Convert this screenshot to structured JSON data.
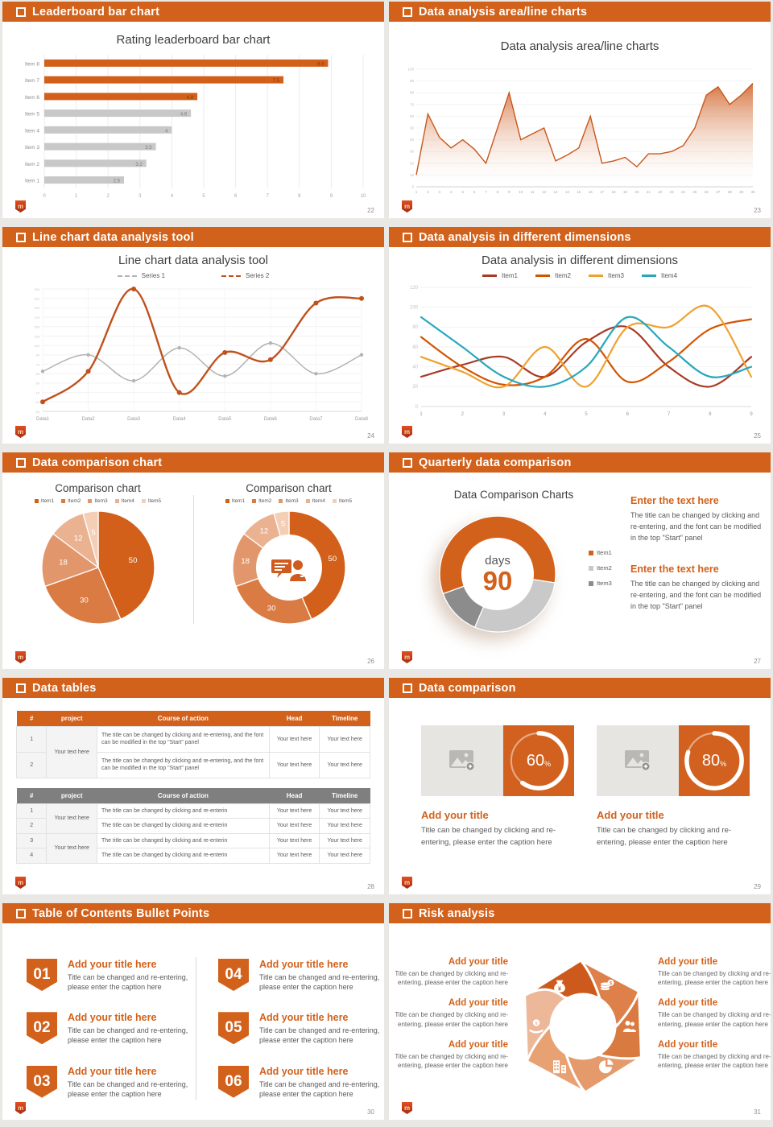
{
  "colors": {
    "accent": "#d2611b",
    "page_bg": "#eae8e4",
    "slide_bg": "#ffffff",
    "bar_orange": "#d2601a",
    "bar_gray": "#c8c8c8",
    "donut_gray_light": "#c9c9c9",
    "donut_gray_dark": "#8c8c8c"
  },
  "logo": {
    "label": "m"
  },
  "slides": [
    {
      "header": "Leaderboard bar chart",
      "page": "22",
      "title": "Rating leaderboard bar chart"
    },
    {
      "header": "Data analysis area/line charts",
      "page": "23",
      "title": "Data analysis area/line charts"
    },
    {
      "header": "Line chart data analysis tool",
      "page": "24",
      "title": "Line chart data analysis tool"
    },
    {
      "header": "Data analysis in different dimensions",
      "page": "25",
      "title": "Data analysis in different dimensions"
    },
    {
      "header": "Data comparison chart",
      "page": "26",
      "left_title": "Comparison chart",
      "right_title": "Comparison chart"
    },
    {
      "header": "Quarterly data comparison",
      "page": "27",
      "chart_title": "Data Comparison Charts",
      "center_label": "days",
      "center_value": "90",
      "blocks": [
        {
          "heading": "Enter the text here",
          "body": "The title can be changed by clicking and re-entering, and the font can be modified in the top \"Start\" panel"
        },
        {
          "heading": "Enter the text here",
          "body": "The title can be changed by clicking and re-entering, and the font can be modified in the top \"Start\" panel"
        }
      ]
    },
    {
      "header": "Data tables",
      "page": "28",
      "columns": [
        "#",
        "project",
        "Course of action",
        "Head",
        "Timeline"
      ],
      "table1": {
        "projects": [
          "Your text here"
        ],
        "rows": [
          {
            "num": "1",
            "course": "The title can be changed by clicking and re-entering, and the font can be modified in the top \"Start\" panel",
            "head": "Your text here",
            "timeline": "Your text here"
          },
          {
            "num": "2",
            "course": "The title can be changed by clicking and re-entering, and the font can be modified in the top \"Start\" panel",
            "head": "Your text here",
            "timeline": "Your text here"
          }
        ]
      },
      "table2": {
        "projects": [
          "Your text here",
          "Your text here"
        ],
        "rows": [
          {
            "num": "1",
            "course": "The title can be changed by clicking and re-enterin",
            "head": "Your text here",
            "timeline": "Your text here"
          },
          {
            "num": "2",
            "course": "The title can be changed by clicking and re-enterin",
            "head": "Your text here",
            "timeline": "Your text here"
          },
          {
            "num": "3",
            "course": "The title can be changed by clicking and re-enterin",
            "head": "Your text here",
            "timeline": "Your text here"
          },
          {
            "num": "4",
            "course": "The title can be changed by clicking and re-enterin",
            "head": "Your text here",
            "timeline": "Your text here"
          }
        ]
      }
    },
    {
      "header": "Data comparison",
      "page": "29",
      "cards": [
        {
          "value": "60",
          "unit": "%",
          "heading": "Add your title",
          "body": "Title can be changed by clicking and re-entering, please enter the caption here"
        },
        {
          "value": "80",
          "unit": "%",
          "heading": "Add your title",
          "body": "Title can be changed by clicking and re-entering, please enter the caption here"
        }
      ]
    },
    {
      "header": "Table of Contents Bullet Points",
      "page": "30",
      "items": [
        {
          "num": "01",
          "heading": "Add your title here",
          "body": "Title can be changed and re-entering, please enter the caption here"
        },
        {
          "num": "02",
          "heading": "Add your title here",
          "body": "Title can be changed and re-entering, please enter the caption here"
        },
        {
          "num": "03",
          "heading": "Add your title here",
          "body": "Title can be changed and re-entering, please enter the caption here"
        },
        {
          "num": "04",
          "heading": "Add your title here",
          "body": "Title can be changed and re-entering, please enter the caption here"
        },
        {
          "num": "05",
          "heading": "Add your title here",
          "body": "Title can be changed and re-entering, please enter the caption here"
        },
        {
          "num": "06",
          "heading": "Add your title here",
          "body": "Title can be changed and re-entering, please enter the caption here"
        }
      ]
    },
    {
      "header": "Risk analysis",
      "page": "31",
      "icons": [
        "money-bag",
        "coins",
        "people",
        "pie-chart",
        "building",
        "hand-coin"
      ],
      "blocks": [
        {
          "heading": "Add your title",
          "body": "Title can be changed by clicking and re-entering, please enter the caption here"
        },
        {
          "heading": "Add your title",
          "body": "Title can be changed by clicking and re-entering, please enter the caption here"
        },
        {
          "heading": "Add your title",
          "body": "Title can be changed by clicking and re-entering, please enter the caption here"
        },
        {
          "heading": "Add your title",
          "body": "Title can be changed by clicking and re-entering, please enter the caption here"
        },
        {
          "heading": "Add your title",
          "body": "Title can be changed by clicking and re-entering, please enter the caption here"
        },
        {
          "heading": "Add your title",
          "body": "Title can be changed by clicking and re-entering, please enter the caption here"
        }
      ]
    }
  ],
  "chart_data": [
    {
      "slide": "Leaderboard bar chart",
      "type": "bar",
      "orientation": "horizontal",
      "title": "Rating leaderboard bar chart",
      "categories": [
        "Item 8",
        "Item 7",
        "Item 6",
        "Item 5",
        "Item 4",
        "Item 3",
        "Item 2",
        "Item 1"
      ],
      "values": [
        8.9,
        7.5,
        4.8,
        4.6,
        4,
        3.5,
        3.2,
        2.5
      ],
      "bar_colors": [
        "#d2601a",
        "#d2601a",
        "#d2601a",
        "#c8c8c8",
        "#c8c8c8",
        "#c8c8c8",
        "#c8c8c8",
        "#c8c8c8"
      ],
      "xlim": [
        0,
        10
      ],
      "xticks": [
        0,
        1,
        2,
        3,
        4,
        5,
        6,
        7,
        8,
        9,
        10
      ],
      "grid": "vertical"
    },
    {
      "slide": "Data analysis area/line charts",
      "type": "area",
      "title": "Data analysis area/line charts",
      "x": [
        1,
        2,
        3,
        4,
        5,
        6,
        7,
        8,
        9,
        10,
        11,
        12,
        13,
        14,
        15,
        16,
        17,
        18,
        19,
        20,
        21,
        22,
        23,
        24,
        25,
        26,
        27,
        28,
        29,
        30
      ],
      "values": [
        10,
        62,
        42,
        33,
        40,
        32,
        20,
        50,
        80,
        40,
        45,
        50,
        22,
        27,
        33,
        60,
        20,
        22,
        25,
        17,
        28,
        28,
        30,
        35,
        50,
        78,
        85,
        70,
        78,
        88
      ],
      "ylim": [
        0,
        100
      ],
      "ytick_step": 10,
      "line_color": "#c9571c",
      "fill": "orange-gradient",
      "grid": "horizontal"
    },
    {
      "slide": "Line chart data analysis tool",
      "type": "line",
      "title": "Line chart data analysis tool",
      "smooth": true,
      "markers": true,
      "legend_position": "top",
      "categories": [
        "Data1",
        "Data2",
        "Data3",
        "Data4",
        "Data5",
        "Data6",
        "Data7",
        "Data8"
      ],
      "series": [
        {
          "name": "Series 1",
          "color": "#b3b3b3",
          "values": [
            55,
            90,
            35,
            105,
            45,
            115,
            50,
            90
          ]
        },
        {
          "name": "Series 2",
          "color": "#c0511d",
          "values": [
            -10,
            55,
            230,
            10,
            95,
            80,
            200,
            210
          ]
        }
      ],
      "ylim": [
        -30,
        230
      ],
      "ytick_step": 20
    },
    {
      "slide": "Data analysis in different dimensions",
      "type": "line",
      "title": "Data analysis in different dimensions",
      "smooth": true,
      "markers": false,
      "legend_position": "top",
      "x": [
        1,
        2,
        3,
        4,
        5,
        6,
        7,
        8,
        9
      ],
      "series": [
        {
          "name": "Item1",
          "color": "#a93b26",
          "values": [
            30,
            42,
            50,
            30,
            65,
            80,
            40,
            20,
            50
          ]
        },
        {
          "name": "Item2",
          "color": "#d35400",
          "values": [
            70,
            40,
            22,
            30,
            68,
            25,
            45,
            78,
            88
          ]
        },
        {
          "name": "Item3",
          "color": "#f0a12f",
          "values": [
            50,
            35,
            20,
            60,
            20,
            80,
            80,
            100,
            30
          ]
        },
        {
          "name": "Item4",
          "color": "#27a7bd",
          "values": [
            90,
            60,
            30,
            20,
            40,
            90,
            60,
            30,
            40
          ]
        }
      ],
      "ylim": [
        0,
        120
      ],
      "ytick_step": 20
    },
    {
      "slide": "Data comparison chart",
      "type": "pie",
      "title": "Comparison chart",
      "labels": [
        "Item1",
        "Item2",
        "Item3",
        "Item4",
        "Item5"
      ],
      "values": [
        50,
        30,
        18,
        12,
        5
      ],
      "colors": [
        "#d2601a",
        "#d97b43",
        "#e2966b",
        "#ebb291",
        "#f4cfb6"
      ]
    },
    {
      "slide": "Data comparison chart",
      "type": "donut",
      "title": "Comparison chart",
      "center_icon": "presenter",
      "labels": [
        "Item1",
        "Item2",
        "Item3",
        "Item4",
        "Item5"
      ],
      "values": [
        50,
        30,
        18,
        12,
        5
      ],
      "colors": [
        "#d2601a",
        "#d97b43",
        "#e2966b",
        "#ebb291",
        "#f4cfb6"
      ]
    },
    {
      "slide": "Quarterly data comparison",
      "type": "donut",
      "title": "Data Comparison Charts",
      "labels": [
        "Item1",
        "Item2",
        "Item3"
      ],
      "values": [
        58,
        29,
        13
      ],
      "colors": [
        "#d2611b",
        "#c9c9c9",
        "#8c8c8c"
      ],
      "start_deg": 160,
      "center_label": "days",
      "center_value": "90"
    },
    {
      "slide": "Data comparison",
      "type": "progress-ring",
      "values": [
        60,
        80
      ],
      "unit": "%"
    }
  ]
}
